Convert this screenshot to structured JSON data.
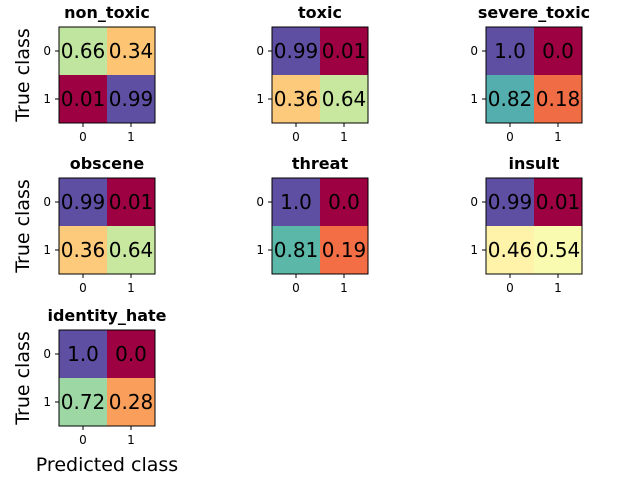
{
  "chart_data": {
    "type": "heatmap",
    "colormap": "Spectral",
    "xlabel": "Predicted class",
    "ylabel": "True class",
    "tick_labels": [
      "0",
      "1"
    ],
    "panels": [
      {
        "title": "non_toxic",
        "values": [
          [
            0.66,
            0.34
          ],
          [
            0.01,
            0.99
          ]
        ],
        "labels": [
          [
            "0.66",
            "0.34"
          ],
          [
            "0.01",
            "0.99"
          ]
        ],
        "colors": [
          [
            "#c0e59e",
            "#fdc473"
          ],
          [
            "#9e0142",
            "#5e4fa2"
          ]
        ]
      },
      {
        "title": "toxic",
        "values": [
          [
            0.99,
            0.01
          ],
          [
            0.36,
            0.64
          ]
        ],
        "labels": [
          [
            "0.99",
            "0.01"
          ],
          [
            "0.36",
            "0.64"
          ]
        ],
        "colors": [
          [
            "#5e4fa2",
            "#9e0142"
          ],
          [
            "#fdc97a",
            "#c7e89e"
          ]
        ]
      },
      {
        "title": "severe_toxic",
        "values": [
          [
            1.0,
            0.0
          ],
          [
            0.82,
            0.18
          ]
        ],
        "labels": [
          [
            "1.0",
            "0.0"
          ],
          [
            "0.82",
            "0.18"
          ]
        ],
        "colors": [
          [
            "#5e4fa2",
            "#9e0142"
          ],
          [
            "#54aead",
            "#f06c45"
          ]
        ]
      },
      {
        "title": "obscene",
        "values": [
          [
            0.99,
            0.01
          ],
          [
            0.36,
            0.64
          ]
        ],
        "labels": [
          [
            "0.99",
            "0.01"
          ],
          [
            "0.36",
            "0.64"
          ]
        ],
        "colors": [
          [
            "#5e4fa2",
            "#9e0142"
          ],
          [
            "#fdc97a",
            "#c7e89e"
          ]
        ]
      },
      {
        "title": "threat",
        "values": [
          [
            1.0,
            0.0
          ],
          [
            0.81,
            0.19
          ]
        ],
        "labels": [
          [
            "1.0",
            "0.0"
          ],
          [
            "0.81",
            "0.19"
          ]
        ],
        "colors": [
          [
            "#5e4fa2",
            "#9e0142"
          ],
          [
            "#5bb7a7",
            "#f36d45"
          ]
        ]
      },
      {
        "title": "insult",
        "values": [
          [
            0.99,
            0.01
          ],
          [
            0.46,
            0.54
          ]
        ],
        "labels": [
          [
            "0.99",
            "0.01"
          ],
          [
            "0.46",
            "0.54"
          ]
        ],
        "colors": [
          [
            "#5e4fa2",
            "#9e0142"
          ],
          [
            "#fef3a9",
            "#f9fbb0"
          ]
        ]
      },
      {
        "title": "identity_hate",
        "values": [
          [
            1.0,
            0.0
          ],
          [
            0.72,
            0.28
          ]
        ],
        "labels": [
          [
            "1.0",
            "0.0"
          ],
          [
            "0.72",
            "0.28"
          ]
        ],
        "colors": [
          [
            "#5e4fa2",
            "#9e0142"
          ],
          [
            "#9dd7a4",
            "#f99e5b"
          ]
        ]
      }
    ]
  }
}
